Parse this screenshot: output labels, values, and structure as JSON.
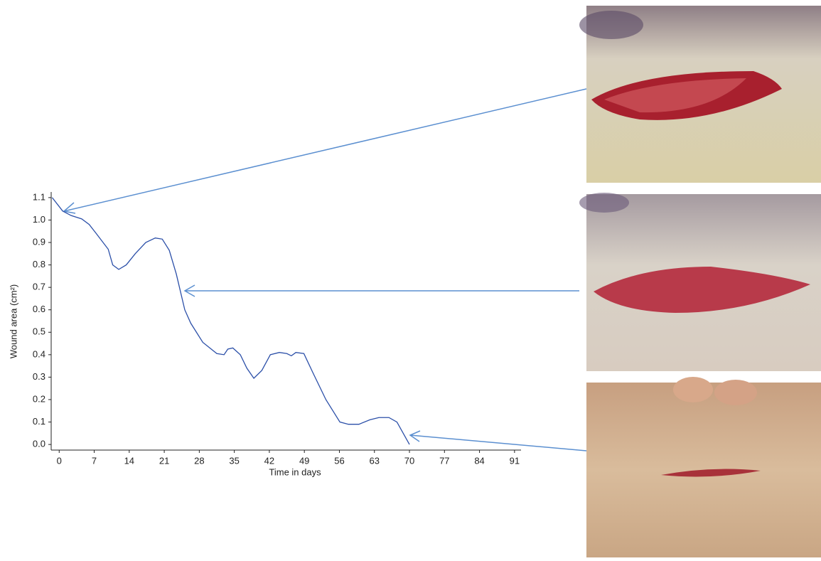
{
  "chart_data": {
    "type": "line",
    "x_label": "Time in days",
    "y_label": "Wound area (cm²)",
    "xlim": [
      -1.6,
      92.3
    ],
    "xticks": [
      0,
      7,
      14,
      21,
      28,
      35,
      42,
      49,
      56,
      63,
      70,
      77,
      84,
      91
    ],
    "ylim": [
      -0.025,
      1.125
    ],
    "yticks": [
      {
        "value": 0,
        "label": "0.0"
      },
      0.1,
      0.2,
      0.3,
      0.4,
      0.5,
      0.6,
      0.7,
      0.8,
      0.9,
      {
        "value": 1,
        "label": "1.0"
      },
      1.1
    ],
    "grid": false,
    "series": [
      {
        "color": "#2b4fa8",
        "x": [
          -1.4,
          0.7,
          2.4,
          4.5,
          6,
          7.4,
          9.8,
          10.7,
          11.9,
          13.4,
          15.2,
          17.3,
          19.2,
          20.6,
          22,
          23.4,
          25.1,
          26.3,
          28.7,
          31.5,
          32.95,
          33.7,
          34.7,
          36.2,
          37.5,
          38.9,
          40.5,
          42.2,
          44,
          45.5,
          46.4,
          47.3,
          48.9,
          50.7,
          53.3,
          56.1,
          57.8,
          59.9,
          62.1,
          63.9,
          65.9,
          67.5,
          70
        ],
        "values": [
          1.1,
          1.04,
          1.02,
          1.005,
          0.98,
          0.94,
          0.87,
          0.8,
          0.78,
          0.8,
          0.85,
          0.9,
          0.92,
          0.915,
          0.865,
          0.76,
          0.6,
          0.54,
          0.455,
          0.405,
          0.4,
          0.425,
          0.43,
          0.4,
          0.34,
          0.295,
          0.33,
          0.4,
          0.41,
          0.405,
          0.395,
          0.41,
          0.405,
          0.32,
          0.2,
          0.1,
          0.09,
          0.09,
          0.11,
          0.12,
          0.12,
          0.1,
          0
        ]
      }
    ]
  }
}
